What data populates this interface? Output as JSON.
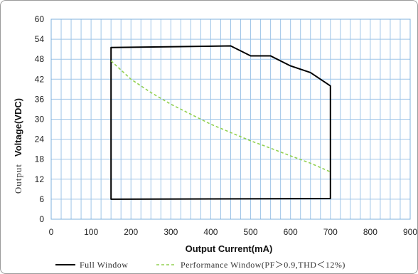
{
  "chart_data": {
    "type": "line",
    "xlabel": "Output Current(mA)",
    "ylabel_prefix": "Output",
    "ylabel_main": "Voltage(VDC)",
    "xlim": [
      0,
      900
    ],
    "ylim": [
      0,
      60
    ],
    "x_ticks": [
      0,
      100,
      200,
      300,
      400,
      500,
      600,
      700,
      800,
      900
    ],
    "y_ticks": [
      0,
      6,
      12,
      18,
      24,
      30,
      36,
      42,
      48,
      54,
      60
    ],
    "grid": true,
    "legend_position": "bottom",
    "series": [
      {
        "name": "Full Window",
        "color": "#000000",
        "style": "solid",
        "closed": true,
        "points": [
          [
            150,
            51.5
          ],
          [
            450,
            52
          ],
          [
            500,
            49
          ],
          [
            550,
            49
          ],
          [
            600,
            46
          ],
          [
            650,
            44
          ],
          [
            700,
            40
          ],
          [
            700,
            6.2
          ],
          [
            150,
            6
          ]
        ]
      },
      {
        "name": "Performance Window(PF＞0.9,THD＜12%)",
        "color": "#92d050",
        "style": "dashed",
        "closed": false,
        "points": [
          [
            150,
            47.5
          ],
          [
            200,
            42
          ],
          [
            250,
            38
          ],
          [
            300,
            34.5
          ],
          [
            350,
            31.5
          ],
          [
            400,
            28.5
          ],
          [
            450,
            26
          ],
          [
            500,
            23.5
          ],
          [
            550,
            21.3
          ],
          [
            600,
            19
          ],
          [
            650,
            16.8
          ],
          [
            700,
            14.2
          ]
        ]
      }
    ]
  }
}
